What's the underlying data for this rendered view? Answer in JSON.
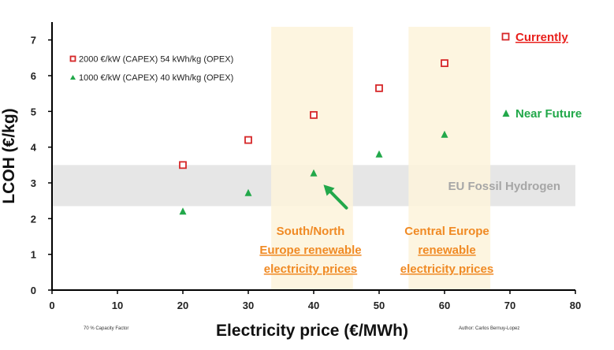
{
  "chart_data": {
    "type": "scatter",
    "xlabel": "Electricity price (€/MWh)",
    "ylabel": "LCOH (€/kg)",
    "xlim": [
      0,
      80
    ],
    "ylim": [
      0,
      7.5
    ],
    "xticks": [
      0,
      10,
      20,
      30,
      40,
      50,
      60,
      70,
      80
    ],
    "yticks": [
      0,
      1,
      2,
      3,
      4,
      5,
      6,
      7
    ],
    "series": [
      {
        "name": "2000 €/kW (CAPEX) 54 kWh/kg (OPEX)",
        "marker": "square-open",
        "color": "#d62728",
        "x": [
          20,
          30,
          40,
          50,
          60
        ],
        "y": [
          3.5,
          4.2,
          4.9,
          5.65,
          6.35
        ]
      },
      {
        "name": "1000 €/kW (CAPEX) 40 kWh/kg (OPEX)",
        "marker": "triangle-filled",
        "color": "#22a84a",
        "x": [
          20,
          30,
          40,
          50,
          60
        ],
        "y": [
          2.2,
          2.72,
          3.27,
          3.8,
          4.35
        ]
      }
    ],
    "regions": [
      {
        "name": "EU Fossil Hydrogen",
        "label": "EU Fossil Hydrogen",
        "orientation": "horizontal",
        "y_range": [
          2.35,
          3.5
        ],
        "color": "#e6e6e6"
      },
      {
        "name": "south-north-europe",
        "label_lines": [
          "South/North",
          "Europe renewable",
          "electricity prices"
        ],
        "orientation": "vertical",
        "x_range": [
          33.5,
          46
        ],
        "color": "#fdf3da"
      },
      {
        "name": "central-europe",
        "label_lines": [
          "Central Europe",
          "renewable",
          "electricity prices"
        ],
        "orientation": "vertical",
        "x_range": [
          54.5,
          67
        ],
        "color": "#fdf3da"
      }
    ],
    "annotations": {
      "currently": "Currently",
      "near_future": "Near Future",
      "capacity_factor": "70 % Capacity Factor",
      "author": "Author: Carlos Bernuy-Lopez"
    },
    "arrow": {
      "from": [
        45,
        2.3
      ],
      "to": [
        41.5,
        2.95
      ],
      "color": "#22a84a"
    }
  }
}
